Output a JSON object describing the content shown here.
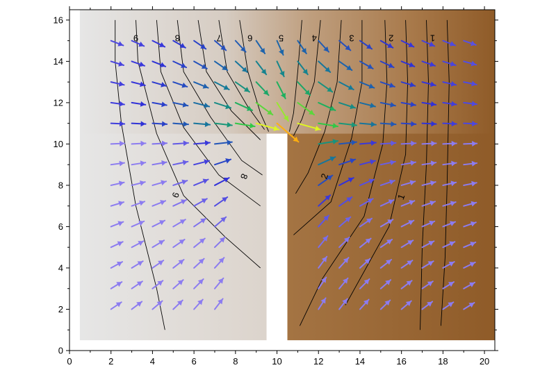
{
  "chart_data": {
    "type": "vector_field",
    "title": "",
    "xlabel": "",
    "ylabel": "",
    "xlim": [
      0,
      20.5
    ],
    "ylim": [
      0,
      16.5
    ],
    "x_ticks": [
      0,
      2,
      4,
      6,
      8,
      10,
      12,
      14,
      16,
      18,
      20
    ],
    "y_ticks": [
      0,
      2,
      4,
      6,
      8,
      10,
      12,
      14,
      16
    ],
    "grid": false,
    "domain": {
      "left_block": {
        "x": [
          0.5,
          9.5
        ],
        "y": [
          0.5,
          16.5
        ],
        "color": "#dedede"
      },
      "right_block": {
        "x": [
          10.5,
          20.5
        ],
        "y": [
          0.5,
          16.5
        ],
        "color": "#95622f"
      },
      "upper_band": {
        "x": [
          0.5,
          20.5
        ],
        "y": [
          10.5,
          16.5
        ]
      },
      "barrier": {
        "x": [
          9.5,
          10.5
        ],
        "y": [
          0.5,
          10.5
        ]
      }
    },
    "color_scale": [
      "#8c7cf0",
      "#3030d8",
      "#147c96",
      "#21c24a",
      "#d8ff20",
      "#ffd21e",
      "#ff8d00",
      "#ea1515"
    ],
    "contour_labels": [
      "9",
      "8",
      "7",
      "6",
      "5",
      "4",
      "3",
      "2",
      "1"
    ],
    "left_contour_labels": [
      "8",
      "9"
    ],
    "right_contour_labels": [
      "2",
      "1"
    ]
  }
}
